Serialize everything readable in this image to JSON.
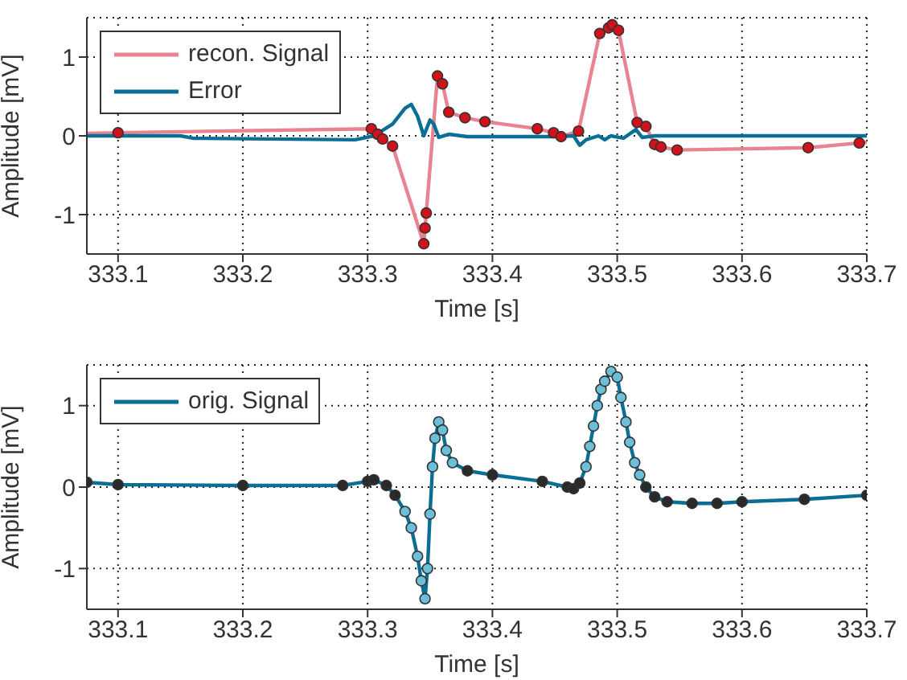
{
  "chart_data": [
    {
      "type": "line",
      "xlabel": "Time [s]",
      "ylabel": "Amplitude [mV]",
      "xlim": [
        333.075,
        333.7
      ],
      "ylim": [
        -1.5,
        1.5
      ],
      "xticks": [
        333.1,
        333.2,
        333.3,
        333.4,
        333.5,
        333.6,
        333.7
      ],
      "yticks": [
        -1,
        0,
        1
      ],
      "grid": true,
      "legend": "top left",
      "line_style": "solid",
      "series": [
        {
          "name": "recon. Signal",
          "marker": "none",
          "color": "#e8838f",
          "x": [
            333.075,
            333.1,
            333.303,
            333.308,
            333.312,
            333.32,
            333.345,
            333.346,
            333.347,
            333.356,
            333.36,
            333.365,
            333.378,
            333.394,
            333.436,
            333.449,
            333.455,
            333.469,
            333.486,
            333.493,
            333.496,
            333.501,
            333.516,
            333.523,
            333.53,
            333.535,
            333.548,
            333.653,
            333.694,
            333.7
          ],
          "values": [
            0.03,
            0.04,
            0.09,
            0.02,
            -0.04,
            -0.13,
            -1.37,
            -1.17,
            -0.98,
            0.76,
            0.66,
            0.3,
            0.23,
            0.18,
            0.09,
            0.04,
            -0.01,
            0.06,
            1.3,
            1.37,
            1.41,
            1.34,
            0.17,
            0.12,
            -0.11,
            -0.14,
            -0.18,
            -0.15,
            -0.09,
            -0.08
          ]
        },
        {
          "name": "Error",
          "marker": "none",
          "color": "#0b6e94",
          "x": [
            333.075,
            333.15,
            333.16,
            333.29,
            333.305,
            333.32,
            333.33,
            333.335,
            333.34,
            333.345,
            333.35,
            333.353,
            333.357,
            333.365,
            333.38,
            333.45,
            333.465,
            333.47,
            333.475,
            333.485,
            333.49,
            333.495,
            333.505,
            333.515,
            333.52,
            333.53,
            333.7
          ],
          "values": [
            0,
            0,
            -0.03,
            -0.05,
            0,
            0.15,
            0.35,
            0.4,
            0.25,
            0,
            0.2,
            0.15,
            -0.02,
            0.02,
            -0.01,
            -0.01,
            0,
            -0.12,
            -0.05,
            0,
            -0.05,
            0,
            -0.03,
            0.08,
            -0.02,
            0,
            0
          ]
        },
        {
          "type": "scatter",
          "marker": "circle",
          "color": "#d0121b",
          "x": [
            333.1,
            333.303,
            333.308,
            333.312,
            333.32,
            333.345,
            333.346,
            333.347,
            333.356,
            333.36,
            333.365,
            333.378,
            333.394,
            333.436,
            333.449,
            333.455,
            333.469,
            333.486,
            333.493,
            333.496,
            333.501,
            333.516,
            333.523,
            333.53,
            333.535,
            333.548,
            333.653,
            333.694
          ],
          "values": [
            0.04,
            0.09,
            0.02,
            -0.04,
            -0.13,
            -1.37,
            -1.17,
            -0.98,
            0.76,
            0.66,
            0.3,
            0.23,
            0.18,
            0.09,
            0.04,
            -0.01,
            0.06,
            1.3,
            1.37,
            1.41,
            1.34,
            0.17,
            0.12,
            -0.11,
            -0.14,
            -0.18,
            -0.15,
            -0.09
          ]
        }
      ]
    },
    {
      "type": "line",
      "xlabel": "Time [s]",
      "ylabel": "Amplitude [mV]",
      "xlim": [
        333.075,
        333.7
      ],
      "ylim": [
        -1.5,
        1.5
      ],
      "xticks": [
        333.1,
        333.2,
        333.3,
        333.4,
        333.5,
        333.6,
        333.7
      ],
      "yticks": [
        -1,
        0,
        1
      ],
      "grid": true,
      "legend": "top left",
      "line_style": "solid",
      "series": [
        {
          "name": "orig. Signal",
          "marker": "none",
          "color": "#0b6e94",
          "x": [
            333.075,
            333.1,
            333.2,
            333.28,
            333.3,
            333.305,
            333.315,
            333.322,
            333.33,
            333.335,
            333.34,
            333.343,
            333.346,
            333.348,
            333.35,
            333.352,
            333.354,
            333.357,
            333.36,
            333.363,
            333.368,
            333.38,
            333.4,
            333.44,
            333.46,
            333.465,
            333.47,
            333.475,
            333.478,
            333.481,
            333.484,
            333.487,
            333.49,
            333.495,
            333.5,
            333.503,
            333.507,
            333.51,
            333.514,
            333.518,
            333.523,
            333.53,
            333.54,
            333.56,
            333.58,
            333.6,
            333.65,
            333.7
          ],
          "values": [
            0.06,
            0.03,
            0.02,
            0.02,
            0.07,
            0.09,
            0.02,
            -0.1,
            -0.3,
            -0.5,
            -0.85,
            -1.15,
            -1.37,
            -1,
            -0.33,
            0.25,
            0.6,
            0.8,
            0.7,
            0.45,
            0.3,
            0.2,
            0.15,
            0.07,
            0,
            -0.02,
            0.05,
            0.25,
            0.5,
            0.75,
            1,
            1.2,
            1.3,
            1.42,
            1.35,
            1.1,
            0.8,
            0.55,
            0.3,
            0.15,
            0,
            -0.12,
            -0.18,
            -0.2,
            -0.2,
            -0.18,
            -0.15,
            -0.1
          ]
        },
        {
          "type": "scatter",
          "marker": "circle",
          "color": "#2a2a2a",
          "x": [
            333.075,
            333.1,
            333.2,
            333.28,
            333.3,
            333.305,
            333.315,
            333.322,
            333.38,
            333.4,
            333.44,
            333.46,
            333.465,
            333.47,
            333.523,
            333.53,
            333.54,
            333.56,
            333.58,
            333.6,
            333.65,
            333.7
          ],
          "values": [
            0.06,
            0.03,
            0.02,
            0.02,
            0.07,
            0.09,
            0.02,
            -0.1,
            0.2,
            0.15,
            0.07,
            0,
            -0.02,
            0.05,
            0,
            -0.12,
            -0.18,
            -0.2,
            -0.2,
            -0.18,
            -0.15,
            -0.1
          ]
        },
        {
          "type": "scatter",
          "marker": "circle",
          "color": "#6bbfd8",
          "x": [
            333.33,
            333.335,
            333.34,
            333.343,
            333.346,
            333.348,
            333.35,
            333.352,
            333.354,
            333.357,
            333.36,
            333.363,
            333.368,
            333.475,
            333.478,
            333.481,
            333.484,
            333.487,
            333.49,
            333.495,
            333.5,
            333.503,
            333.507,
            333.51,
            333.514,
            333.518
          ],
          "values": [
            -0.3,
            -0.5,
            -0.85,
            -1.15,
            -1.37,
            -1,
            -0.33,
            0.25,
            0.6,
            0.8,
            0.7,
            0.45,
            0.3,
            0.25,
            0.5,
            0.75,
            1,
            1.2,
            1.3,
            1.42,
            1.35,
            1.1,
            0.8,
            0.55,
            0.3,
            0.15
          ]
        }
      ]
    }
  ]
}
